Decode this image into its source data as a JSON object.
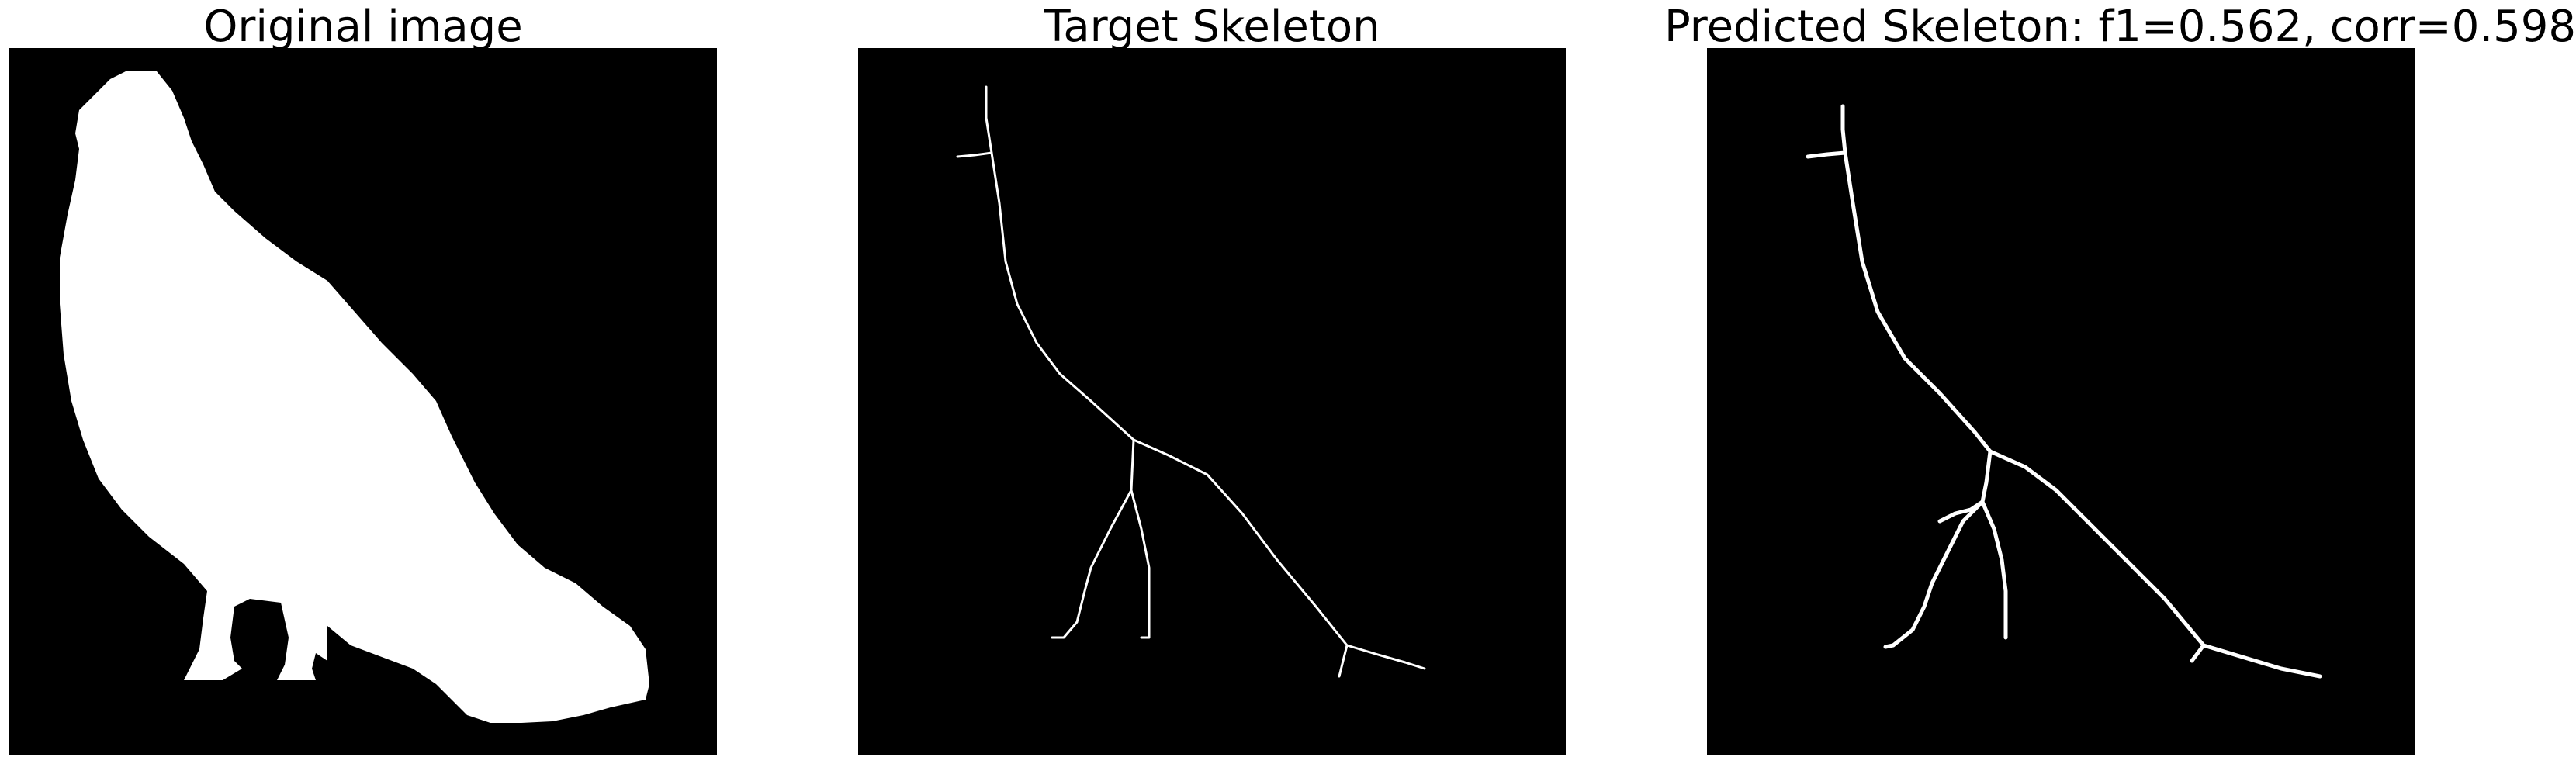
{
  "figure": {
    "panels": [
      {
        "title": "Original image",
        "content": "white bird silhouette on black background"
      },
      {
        "title": "Target Skeleton",
        "content": "thin white skeleton lines on black background"
      },
      {
        "title": "Predicted Skeleton: f1=0.562, corr=0.598",
        "content": "predicted white skeleton lines on black background"
      }
    ],
    "colors": {
      "background": "#000000",
      "foreground": "#ffffff",
      "page": "#ffffff"
    }
  }
}
